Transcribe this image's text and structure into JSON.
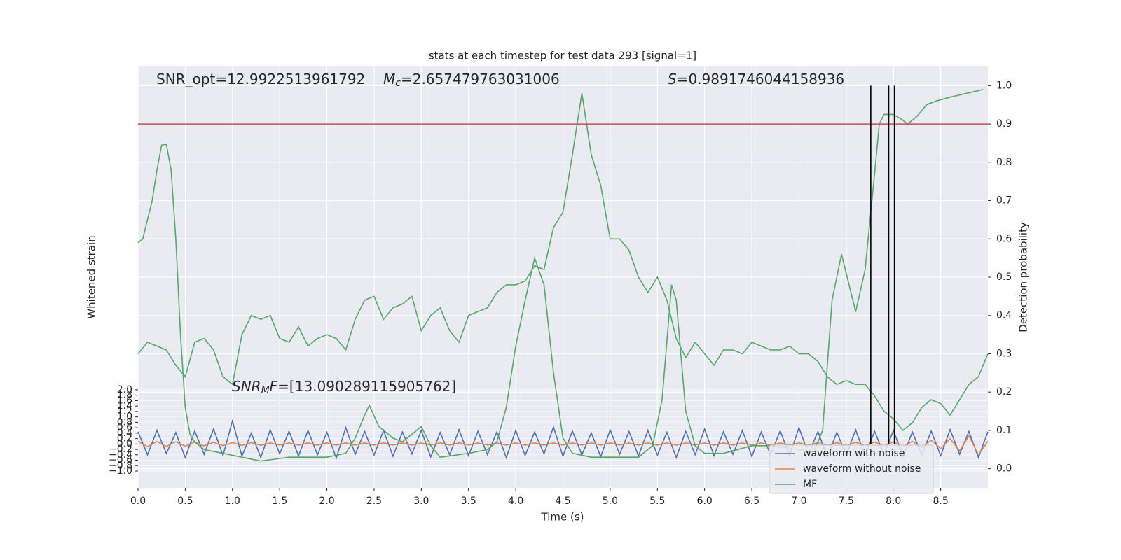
{
  "chart_data": {
    "type": "line",
    "title": "stats at each timestep for test data 293 [signal=1]",
    "xlabel": "Time (s)",
    "ylabel": "Whitened strain",
    "y2label": "Detection probability",
    "xlim": [
      0,
      9.0
    ],
    "ylim": [
      -1.62,
      13.94
    ],
    "y2lim": [
      -0.05,
      1.05
    ],
    "xticks": [
      {
        "value": 0,
        "label": "0.0"
      },
      0.5,
      {
        "value": 1,
        "label": "1.0"
      },
      1.5,
      {
        "value": 2,
        "label": "2.0"
      },
      2.5,
      {
        "value": 3,
        "label": "3.0"
      },
      3.5,
      {
        "value": 4,
        "label": "4.0"
      },
      4.5,
      {
        "value": 5,
        "label": "5.0"
      },
      5.5,
      {
        "value": 6,
        "label": "6.0"
      },
      6.5,
      {
        "value": 7,
        "label": "7.0"
      },
      7.5,
      {
        "value": 8,
        "label": "8.0"
      },
      8.5
    ],
    "yticks": [
      {
        "value": -1,
        "label": "−1.0"
      },
      {
        "value": -0.8,
        "label": "−0.8"
      },
      {
        "value": -0.6,
        "label": "−0.6"
      },
      {
        "value": -0.4,
        "label": "−0.4"
      },
      {
        "value": -0.2,
        "label": "−0.2"
      },
      {
        "value": 0,
        "label": "0.0"
      },
      0.2,
      0.4,
      0.6,
      0.8,
      {
        "value": 1,
        "label": "1.0"
      },
      1.2,
      1.4,
      1.6,
      1.8,
      {
        "value": 2,
        "label": "2.0"
      }
    ],
    "y2ticks": [
      {
        "value": 0,
        "label": "0.0"
      },
      0.1,
      0.2,
      0.3,
      0.4,
      0.5,
      0.6,
      0.7,
      0.8,
      0.9,
      {
        "value": 1,
        "label": "1.0"
      }
    ],
    "grid": true,
    "legend": "lower right",
    "threshold": 0.9,
    "threshold_color": "#c44e52",
    "vlines": [
      7.76,
      7.95,
      8.01
    ],
    "annotations": [
      {
        "text": "SNR_opt=12.9922513961792"
      },
      {
        "symbol": "M",
        "sub": "c",
        "text": "=2.657479763031006"
      },
      {
        "symbol": "S",
        "text": "=0.9891746044158936"
      },
      {
        "symbol": "SNR",
        "sub": "M",
        "symbol2": "F",
        "text": "=[13.090289115905762]"
      }
    ],
    "x": [
      0,
      0.1,
      0.2,
      0.3,
      0.4,
      0.5,
      0.6,
      0.7,
      0.8,
      0.9,
      1,
      1.1,
      1.2,
      1.3,
      1.4,
      1.5,
      1.6,
      1.7,
      1.8,
      1.9,
      2,
      2.1,
      2.2,
      2.3,
      2.4,
      2.5,
      2.6,
      2.7,
      2.8,
      2.9,
      3,
      3.1,
      3.2,
      3.3,
      3.4,
      3.5,
      3.6,
      3.7,
      3.8,
      3.9,
      4,
      4.1,
      4.2,
      4.3,
      4.4,
      4.5,
      4.6,
      4.7,
      4.8,
      4.9,
      5,
      5.1,
      5.2,
      5.3,
      5.4,
      5.5,
      5.6,
      5.7,
      5.8,
      5.9,
      6,
      6.1,
      6.2,
      6.3,
      6.4,
      6.5,
      6.6,
      6.7,
      6.8,
      6.9,
      7,
      7.1,
      7.2,
      7.3,
      7.4,
      7.5,
      7.6,
      7.7,
      7.8,
      7.9,
      8,
      8.1,
      8.2,
      8.3,
      8.4,
      8.5,
      8.6,
      8.7,
      8.8,
      8.9,
      9
    ],
    "series": [
      {
        "name": "waveform with noise",
        "color": "#4c72b0",
        "values": [
          0.45,
          -0.4,
          0.5,
          -0.35,
          0.42,
          -0.5,
          0.48,
          -0.38,
          0.55,
          -0.42,
          0.85,
          -0.45,
          0.4,
          -0.5,
          0.52,
          -0.36,
          0.47,
          -0.44,
          0.5,
          -0.4,
          0.43,
          -0.52,
          0.6,
          -0.38,
          0.46,
          -0.41,
          0.5,
          -0.45,
          0.44,
          -0.37,
          0.5,
          -0.48,
          0.42,
          -0.4,
          0.53,
          -0.43,
          0.47,
          -0.39,
          0.45,
          -0.5,
          0.5,
          -0.42,
          0.44,
          -0.36,
          0.62,
          -0.45,
          0.48,
          -0.4,
          0.41,
          -0.47,
          0.52,
          -0.38,
          0.46,
          -0.44,
          0.5,
          -0.41,
          0.43,
          -0.5,
          0.47,
          -0.4,
          0.55,
          -0.43,
          0.45,
          -0.38,
          0.5,
          -0.46,
          0.44,
          -0.4,
          0.49,
          -0.42,
          0.6,
          -0.37,
          0.46,
          -0.48,
          0.43,
          -0.4,
          0.52,
          -0.44,
          0.47,
          -0.39,
          0.5,
          -0.45,
          0.44,
          -0.4,
          0.48,
          -0.43,
          0.53,
          -0.38,
          0.46,
          -0.5,
          0.45
        ]
      },
      {
        "name": "waveform without noise",
        "color": "#dd8452",
        "values": [
          0.1,
          -0.1,
          0.09,
          -0.09,
          0.08,
          -0.08,
          0.07,
          -0.07,
          0.06,
          -0.06,
          0.05,
          -0.05,
          0.05,
          -0.05,
          0.04,
          -0.04,
          0.04,
          -0.04,
          0.04,
          -0.04,
          0.04,
          -0.04,
          0.04,
          -0.04,
          0.04,
          -0.04,
          0.04,
          -0.04,
          0.04,
          -0.04,
          0.04,
          -0.04,
          0.04,
          -0.04,
          0.04,
          -0.04,
          0.04,
          -0.04,
          0.04,
          -0.04,
          0.04,
          -0.04,
          0.04,
          -0.04,
          0.04,
          -0.04,
          0.04,
          -0.04,
          0.04,
          -0.04,
          0.04,
          -0.04,
          0.04,
          -0.04,
          0.04,
          -0.04,
          0.04,
          -0.04,
          0.04,
          -0.04,
          0.04,
          -0.04,
          0.04,
          -0.04,
          0.04,
          -0.04,
          0.04,
          -0.04,
          0.04,
          -0.04,
          0.04,
          -0.04,
          0.05,
          -0.05,
          0.05,
          -0.05,
          0.06,
          -0.06,
          0.07,
          -0.07,
          0.08,
          -0.09,
          0.1,
          -0.12,
          0.14,
          -0.17,
          0.2,
          -0.25,
          0.3,
          -0.4,
          0.1
        ]
      },
      {
        "name": "MF",
        "color": "#55a868",
        "axis": "y2",
        "x": [
          0,
          0.05,
          0.15,
          0.2,
          0.25,
          0.3,
          0.35,
          0.4,
          0.45,
          0.5,
          0.55,
          0.6,
          0.7,
          0.9,
          1.3,
          1.6,
          2,
          2.2,
          2.3,
          2.4,
          2.45,
          2.55,
          2.7,
          2.8,
          2.9,
          3,
          3.1,
          3.2,
          3.5,
          3.7,
          3.8,
          3.9,
          4,
          4.1,
          4.2,
          4.3,
          4.4,
          4.5,
          4.6,
          4.8,
          5,
          5.3,
          5.45,
          5.55,
          5.65,
          5.7,
          5.8,
          5.9,
          6,
          6.2,
          6.5,
          6.7,
          7,
          7.15,
          7.25,
          7.35,
          7.45,
          7.6,
          7.7,
          7.8,
          7.85,
          7.9,
          8,
          8.1,
          8.15,
          8.25,
          8.35,
          8.45,
          8.6,
          8.95
        ],
        "values": [
          0.59,
          0.6,
          0.7,
          0.78,
          0.845,
          0.847,
          0.78,
          0.6,
          0.35,
          0.16,
          0.09,
          0.07,
          0.05,
          0.04,
          0.02,
          0.03,
          0.03,
          0.04,
          0.08,
          0.14,
          0.165,
          0.11,
          0.08,
          0.07,
          0.09,
          0.11,
          0.06,
          0.03,
          0.04,
          0.05,
          0.07,
          0.16,
          0.32,
          0.44,
          0.55,
          0.48,
          0.25,
          0.08,
          0.04,
          0.03,
          0.03,
          0.03,
          0.06,
          0.18,
          0.48,
          0.44,
          0.15,
          0.06,
          0.04,
          0.04,
          0.06,
          0.06,
          0.05,
          0.04,
          0.1,
          0.44,
          0.56,
          0.41,
          0.52,
          0.77,
          0.9,
          0.925,
          0.925,
          0.91,
          0.9,
          0.92,
          0.95,
          0.96,
          0.97,
          0.99
        ]
      },
      {
        "color": "#55a868",
        "axis": "y2",
        "values": [
          0.3,
          0.33,
          0.32,
          0.31,
          0.27,
          0.24,
          0.33,
          0.34,
          0.31,
          0.24,
          0.22,
          0.35,
          0.4,
          0.39,
          0.4,
          0.34,
          0.33,
          0.37,
          0.32,
          0.34,
          0.35,
          0.34,
          0.31,
          0.39,
          0.44,
          0.45,
          0.39,
          0.42,
          0.43,
          0.45,
          0.36,
          0.4,
          0.42,
          0.36,
          0.33,
          0.4,
          0.41,
          0.42,
          0.46,
          0.48,
          0.48,
          0.49,
          0.53,
          0.52,
          0.63,
          0.67,
          0.82,
          0.98,
          0.82,
          0.74,
          0.6,
          0.6,
          0.57,
          0.5,
          0.46,
          0.5,
          0.44,
          0.34,
          0.29,
          0.33,
          0.3,
          0.27,
          0.31,
          0.31,
          0.3,
          0.33,
          0.32,
          0.31,
          0.31,
          0.32,
          0.3,
          0.3,
          0.28,
          0.24,
          0.22,
          0.23,
          0.22,
          0.22,
          0.19,
          0.15,
          0.13,
          0.1,
          0.12,
          0.16,
          0.18,
          0.17,
          0.14,
          0.18,
          0.22,
          0.24,
          0.3
        ]
      }
    ]
  }
}
